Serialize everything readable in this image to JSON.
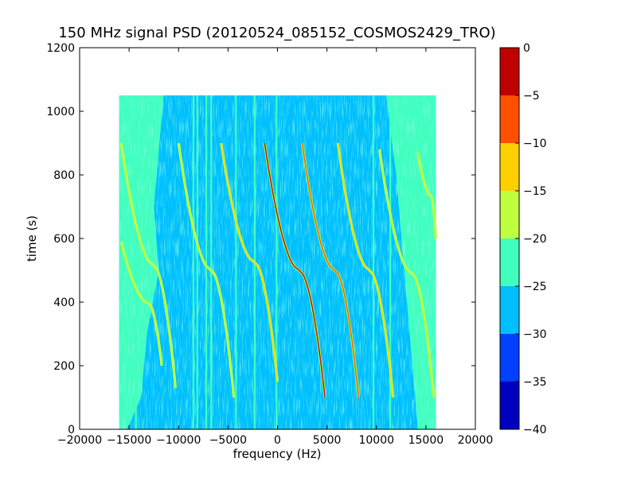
{
  "chart_data": {
    "type": "heatmap",
    "title": "150 MHz signal PSD (20120524_085152_COSMOS2429_TRO)",
    "xlabel": "frequency (Hz)",
    "ylabel": "time (s)",
    "xlim": [
      -20000,
      20000
    ],
    "ylim": [
      0,
      1200
    ],
    "xticks": [
      -20000,
      -15000,
      -10000,
      -5000,
      0,
      5000,
      10000,
      15000,
      20000
    ],
    "yticks": [
      0,
      200,
      400,
      600,
      800,
      1000,
      1200
    ],
    "data_extent": {
      "freq": [
        -16000,
        16000
      ],
      "time": [
        0,
        1050
      ]
    },
    "background_level": "-30 to -25",
    "edge_level": "-25 to -20",
    "colorbar": {
      "levels": [
        -40,
        -35,
        -30,
        -25,
        -20,
        -15,
        -10,
        -5,
        0
      ],
      "colors": [
        "#0000bf",
        "#0040ff",
        "#00bfff",
        "#40ffbf",
        "#bfff40",
        "#ffd000",
        "#ff5000",
        "#bf0000"
      ]
    },
    "vertical_lines_hz": [
      -14300,
      -8500,
      -8100,
      -7200,
      -6700,
      -4200,
      -2300,
      -100,
      9700,
      11400,
      14400
    ],
    "doppler_curves": [
      {
        "t_start": 900,
        "t_end": 130,
        "f_top": -15800,
        "f_mid": -12500,
        "f_bottom": -10300,
        "peak_level": "-20 to -15"
      },
      {
        "t_start": 590,
        "t_end": 200,
        "f_top": -15800,
        "f_mid": -13000,
        "f_bottom": -11700,
        "peak_level": "-20 to -15"
      },
      {
        "t_start": 900,
        "t_end": 100,
        "f_top": -10000,
        "f_mid": -6700,
        "f_bottom": -4400,
        "peak_level": "-20 to -15"
      },
      {
        "t_start": 900,
        "t_end": 150,
        "f_top": -5700,
        "f_mid": -2300,
        "f_bottom": 0,
        "peak_level": "-15 to -10"
      },
      {
        "t_start": 900,
        "t_end": 100,
        "f_top": -1300,
        "f_mid": 2200,
        "f_bottom": 4800,
        "peak_level": "-5 to 0"
      },
      {
        "t_start": 900,
        "t_end": 100,
        "f_top": 2500,
        "f_mid": 5800,
        "f_bottom": 8200,
        "peak_level": "-10 to -5"
      },
      {
        "t_start": 900,
        "t_end": 100,
        "f_top": 6100,
        "f_mid": 9300,
        "f_bottom": 11700,
        "peak_level": "-15 to -10"
      },
      {
        "t_start": 880,
        "t_end": 100,
        "f_top": 10300,
        "f_mid": 13600,
        "f_bottom": 15800,
        "peak_level": "-20 to -15"
      },
      {
        "t_start": 870,
        "t_end": 600,
        "f_top": 14200,
        "f_mid": 15500,
        "f_bottom": 16000,
        "peak_level": "-20 to -15"
      }
    ]
  }
}
